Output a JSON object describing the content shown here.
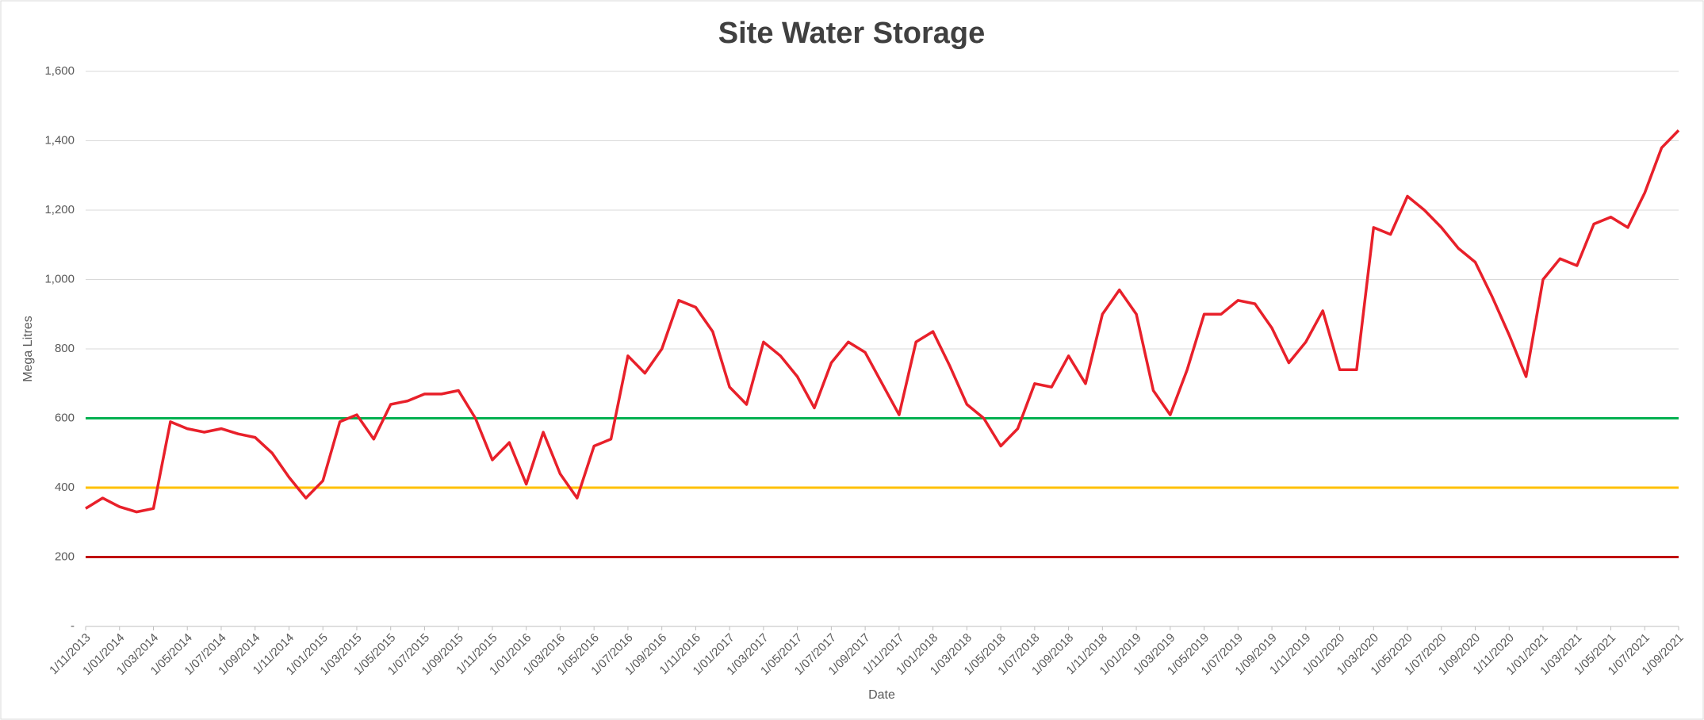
{
  "chart_data": {
    "type": "line",
    "title": "Site Water Storage",
    "x_label": "Date",
    "y_label": "Mega Litres",
    "x": [
      "1/11/2013",
      "1/12/2013",
      "1/01/2014",
      "1/02/2014",
      "1/03/2014",
      "1/04/2014",
      "1/05/2014",
      "1/06/2014",
      "1/07/2014",
      "1/08/2014",
      "1/09/2014",
      "1/10/2014",
      "1/11/2014",
      "1/12/2014",
      "1/01/2015",
      "1/02/2015",
      "1/03/2015",
      "1/04/2015",
      "1/05/2015",
      "1/06/2015",
      "1/07/2015",
      "1/08/2015",
      "1/09/2015",
      "1/10/2015",
      "1/11/2015",
      "1/12/2015",
      "1/01/2016",
      "1/02/2016",
      "1/03/2016",
      "1/04/2016",
      "1/05/2016",
      "1/06/2016",
      "1/07/2016",
      "1/08/2016",
      "1/09/2016",
      "1/10/2016",
      "1/11/2016",
      "1/12/2016",
      "1/01/2017",
      "1/02/2017",
      "1/03/2017",
      "1/04/2017",
      "1/05/2017",
      "1/06/2017",
      "1/07/2017",
      "1/08/2017",
      "1/09/2017",
      "1/10/2017",
      "1/11/2017",
      "1/12/2017",
      "1/01/2018",
      "1/02/2018",
      "1/03/2018",
      "1/04/2018",
      "1/05/2018",
      "1/06/2018",
      "1/07/2018",
      "1/08/2018",
      "1/09/2018",
      "1/10/2018",
      "1/11/2018",
      "1/12/2018",
      "1/01/2019",
      "1/02/2019",
      "1/03/2019",
      "1/04/2019",
      "1/05/2019",
      "1/06/2019",
      "1/07/2019",
      "1/08/2019",
      "1/09/2019",
      "1/10/2019",
      "1/11/2019",
      "1/12/2019",
      "1/01/2020",
      "1/02/2020",
      "1/03/2020",
      "1/04/2020",
      "1/05/2020",
      "1/06/2020",
      "1/07/2020",
      "1/08/2020",
      "1/09/2020",
      "1/10/2020",
      "1/11/2020",
      "1/12/2020",
      "1/01/2021",
      "1/02/2021",
      "1/03/2021",
      "1/04/2021",
      "1/05/2021",
      "1/06/2021",
      "1/07/2021",
      "1/08/2021",
      "1/09/2021"
    ],
    "series": [
      {
        "color": "#e8202a",
        "values": [
          340,
          370,
          345,
          330,
          340,
          590,
          570,
          560,
          570,
          555,
          545,
          500,
          430,
          370,
          420,
          590,
          610,
          540,
          640,
          650,
          670,
          670,
          680,
          600,
          480,
          530,
          410,
          560,
          440,
          370,
          520,
          540,
          780,
          730,
          800,
          940,
          920,
          850,
          690,
          640,
          820,
          780,
          720,
          630,
          760,
          820,
          790,
          700,
          610,
          820,
          850,
          750,
          640,
          600,
          520,
          570,
          700,
          690,
          780,
          700,
          900,
          970,
          900,
          680,
          610,
          740,
          900,
          900,
          940,
          930,
          860,
          760,
          820,
          910,
          740,
          740,
          1150,
          1130,
          1240,
          1200,
          1150,
          1090,
          1050,
          950,
          840,
          720,
          1000,
          1060,
          1040,
          1160,
          1180,
          1150,
          1250,
          1380,
          1430
        ]
      }
    ],
    "reference_lines": [
      {
        "value": 600,
        "color": "#00b050"
      },
      {
        "value": 400,
        "color": "#ffc000"
      },
      {
        "value": 200,
        "color": "#c00000"
      }
    ],
    "xticks": [
      "1/11/2013",
      "1/01/2014",
      "1/03/2014",
      "1/05/2014",
      "1/07/2014",
      "1/09/2014",
      "1/11/2014",
      "1/01/2015",
      "1/03/2015",
      "1/05/2015",
      "1/07/2015",
      "1/09/2015",
      "1/11/2015",
      "1/01/2016",
      "1/03/2016",
      "1/05/2016",
      "1/07/2016",
      "1/09/2016",
      "1/11/2016",
      "1/01/2017",
      "1/03/2017",
      "1/05/2017",
      "1/07/2017",
      "1/09/2017",
      "1/11/2017",
      "1/01/2018",
      "1/03/2018",
      "1/05/2018",
      "1/07/2018",
      "1/09/2018",
      "1/11/2018",
      "1/01/2019",
      "1/03/2019",
      "1/05/2019",
      "1/07/2019",
      "1/09/2019",
      "1/11/2019",
      "1/01/2020",
      "1/03/2020",
      "1/05/2020",
      "1/07/2020",
      "1/09/2020",
      "1/11/2020",
      "1/01/2021",
      "1/03/2021",
      "1/05/2021",
      "1/07/2021",
      "1/09/2021"
    ],
    "ylim": [
      0,
      1600
    ],
    "yticks": [
      {
        "value": 0,
        "label": "-"
      },
      200,
      400,
      600,
      800,
      {
        "value": 1000,
        "label": "1,000"
      },
      {
        "value": 1200,
        "label": "1,200"
      },
      {
        "value": 1400,
        "label": "1,400"
      },
      {
        "value": 1600,
        "label": "1,600"
      }
    ],
    "grid": true
  }
}
